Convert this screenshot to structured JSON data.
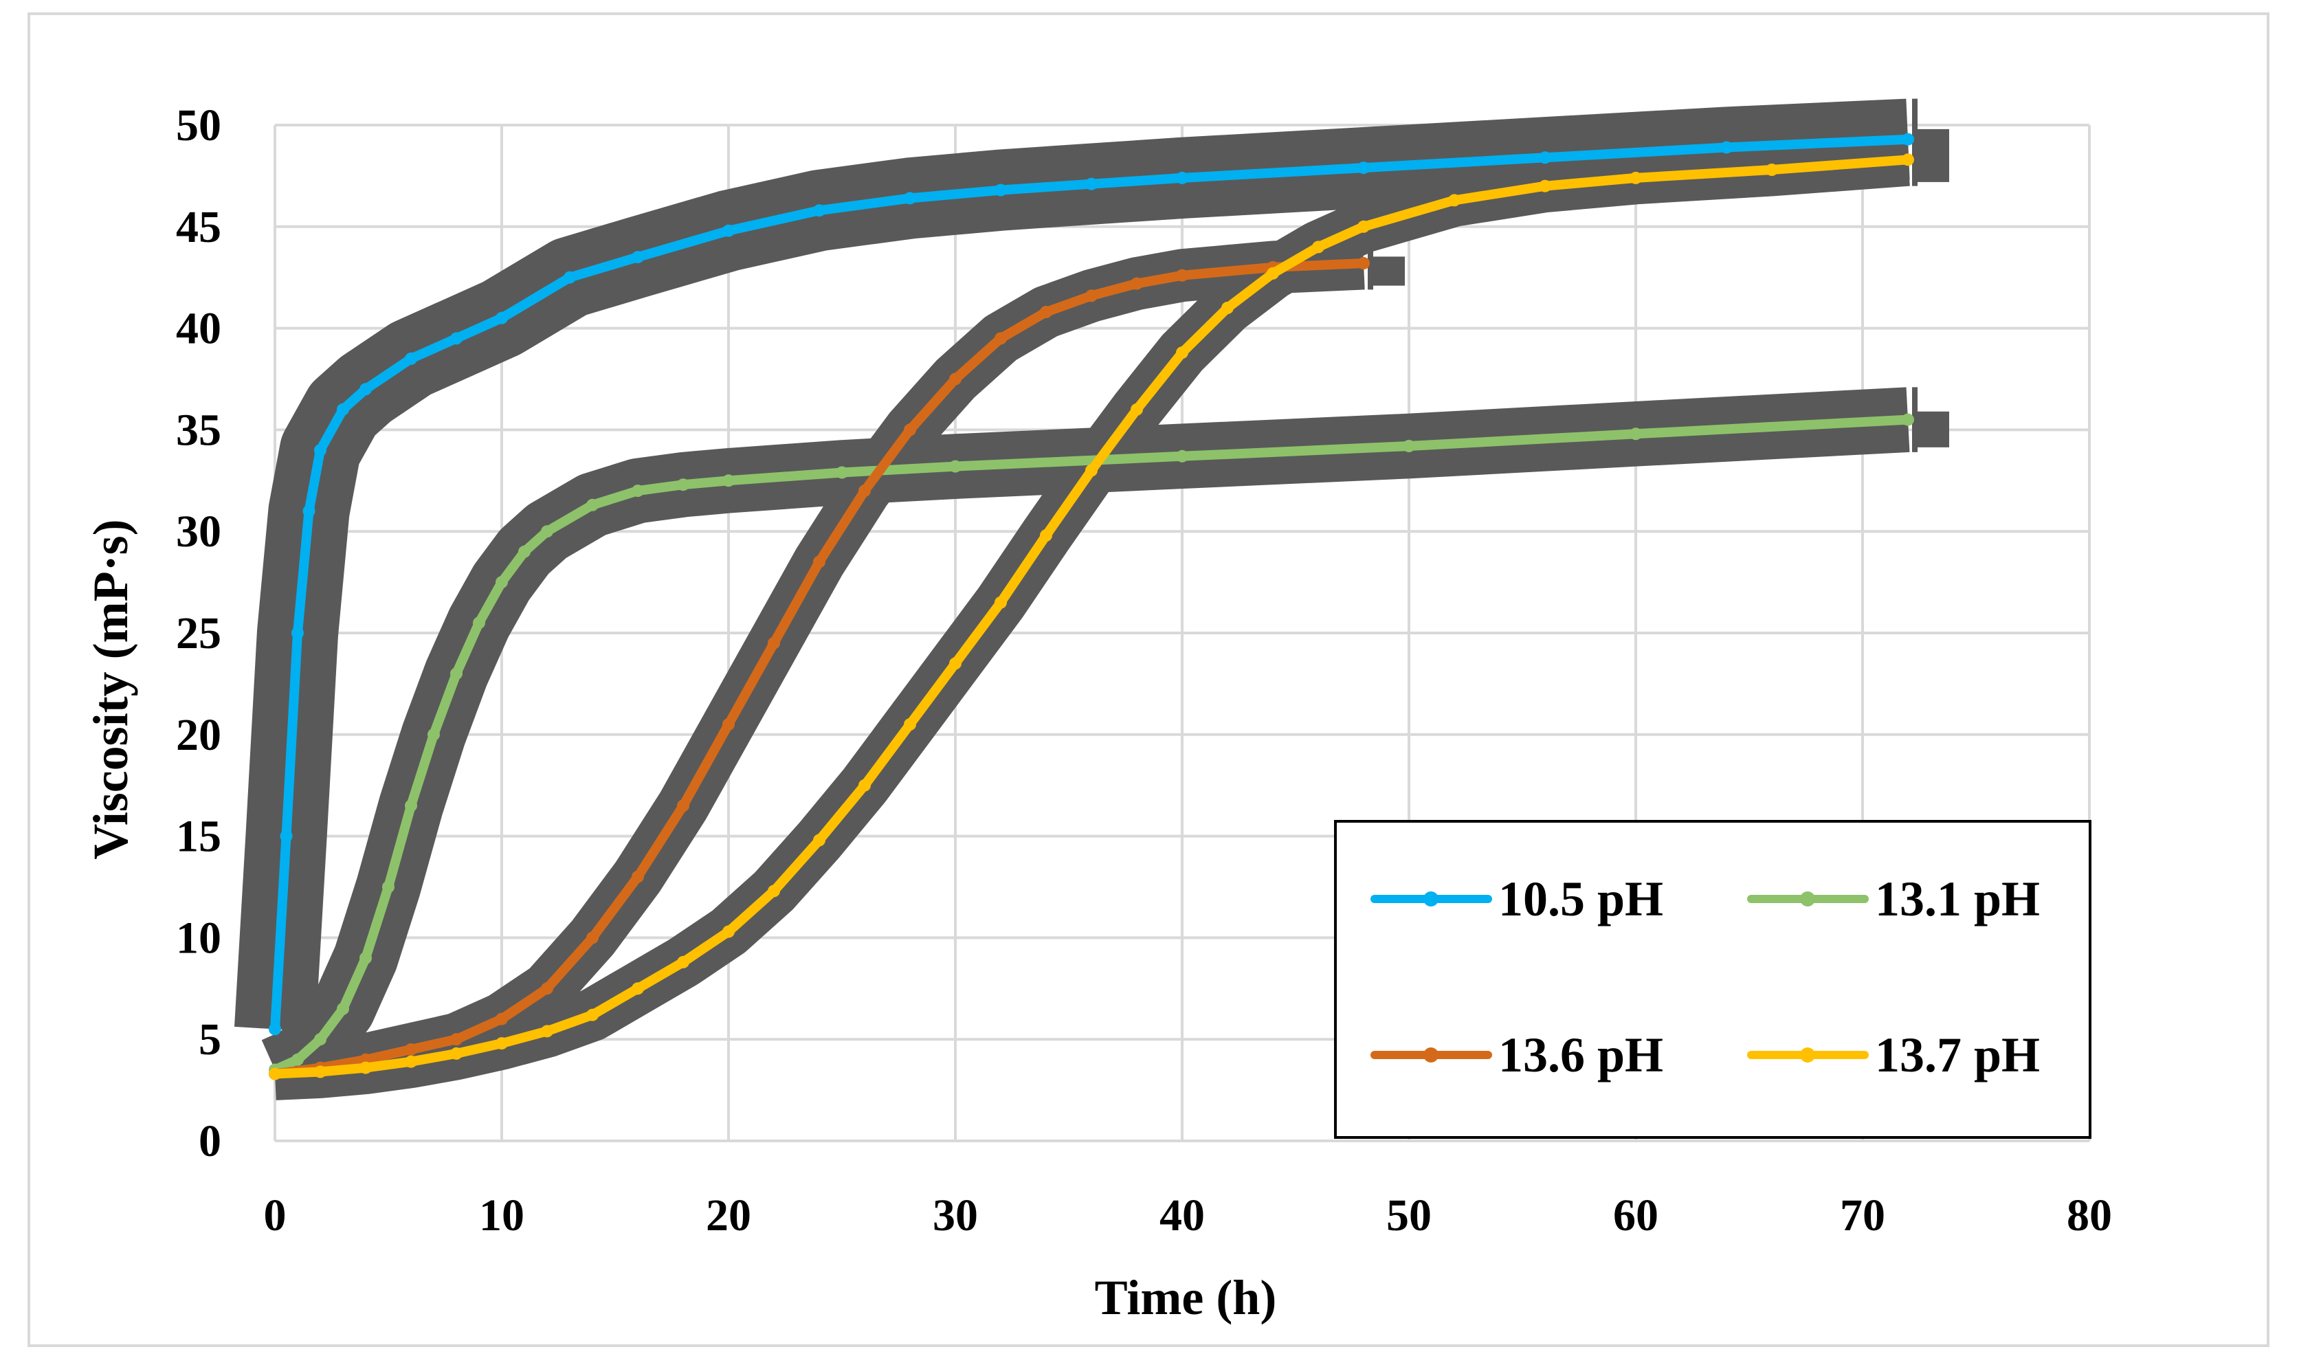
{
  "chart_data": {
    "type": "line",
    "title": "",
    "xlabel": "Time (h)",
    "ylabel": "Viscosity (mP·s)",
    "xlim": [
      0,
      80
    ],
    "ylim": [
      0,
      50
    ],
    "xticks": [
      0,
      10,
      20,
      30,
      40,
      50,
      60,
      70,
      80
    ],
    "yticks": [
      0,
      5,
      10,
      15,
      20,
      25,
      30,
      35,
      40,
      45,
      50
    ],
    "grid": true,
    "legend_position": "bottom-right",
    "error_band_color": "#595959",
    "series": [
      {
        "name": "10.5 pH",
        "color": "#00B0F0",
        "error_halfwidth": 2.0,
        "x": [
          0,
          0.5,
          1,
          1.5,
          2,
          3,
          4,
          6,
          8,
          10,
          13,
          16,
          20,
          24,
          28,
          32,
          36,
          40,
          48,
          56,
          64,
          72
        ],
        "y": [
          5.5,
          15,
          25,
          31,
          34,
          36,
          37,
          38.5,
          39.5,
          40.5,
          42.5,
          43.5,
          44.8,
          45.8,
          46.4,
          46.8,
          47.1,
          47.4,
          47.9,
          48.4,
          48.9,
          49.3
        ]
      },
      {
        "name": "13.1 pH",
        "color": "#8DC26B",
        "error_halfwidth": 1.6,
        "x": [
          0,
          1,
          2,
          3,
          4,
          5,
          6,
          7,
          8,
          9,
          10,
          11,
          12,
          14,
          16,
          18,
          20,
          25,
          30,
          40,
          50,
          60,
          72
        ],
        "y": [
          3.5,
          4,
          5,
          6.5,
          9,
          12.5,
          16.5,
          20,
          23,
          25.5,
          27.5,
          29,
          30,
          31.3,
          32,
          32.3,
          32.5,
          32.9,
          33.2,
          33.7,
          34.2,
          34.8,
          35.5
        ]
      },
      {
        "name": "13.6 pH",
        "color": "#D46A19",
        "error_halfwidth": 1.3,
        "x": [
          0,
          2,
          4,
          6,
          8,
          10,
          12,
          14,
          16,
          18,
          20,
          22,
          24,
          26,
          28,
          30,
          32,
          34,
          36,
          38,
          40,
          44,
          48
        ],
        "y": [
          3.3,
          3.6,
          4.0,
          4.5,
          5.0,
          6.0,
          7.5,
          10.0,
          13.0,
          16.5,
          20.5,
          24.5,
          28.5,
          32.0,
          35.0,
          37.5,
          39.5,
          40.8,
          41.6,
          42.2,
          42.6,
          43.0,
          43.2
        ]
      },
      {
        "name": "13.7 pH",
        "color": "#FFC000",
        "error_halfwidth": 1.3,
        "x": [
          0,
          2,
          4,
          6,
          8,
          10,
          12,
          14,
          16,
          18,
          20,
          22,
          24,
          26,
          28,
          30,
          32,
          34,
          36,
          38,
          40,
          42,
          44,
          46,
          48,
          52,
          56,
          60,
          66,
          72
        ],
        "y": [
          3.3,
          3.4,
          3.6,
          3.9,
          4.3,
          4.8,
          5.4,
          6.2,
          7.5,
          8.8,
          10.3,
          12.3,
          14.8,
          17.5,
          20.5,
          23.5,
          26.5,
          29.8,
          33.0,
          36.0,
          38.8,
          41.0,
          42.7,
          44.0,
          45.0,
          46.3,
          47.0,
          47.4,
          47.8,
          48.3
        ]
      }
    ]
  }
}
